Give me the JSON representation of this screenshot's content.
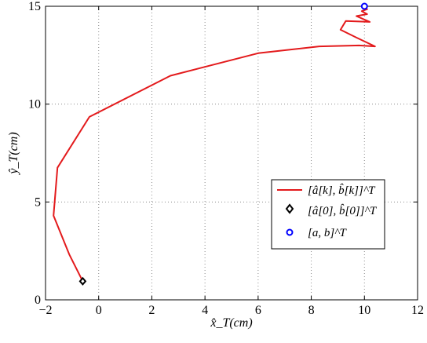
{
  "chart_data": {
    "type": "line",
    "title": "",
    "xlabel": "x̂_T(cm)",
    "ylabel": "ŷ_T(cm)",
    "xlim": [
      -2,
      12
    ],
    "ylim": [
      0,
      15
    ],
    "xticks": [
      -2,
      0,
      2,
      4,
      6,
      8,
      10,
      12
    ],
    "yticks": [
      0,
      5,
      10,
      15
    ],
    "xtick_labels": [
      "−2",
      "0",
      "2",
      "4",
      "6",
      "8",
      "10",
      "12"
    ],
    "ytick_labels": [
      "0",
      "5",
      "10",
      "15"
    ],
    "grid": true,
    "grid_style": "dotted",
    "legend_placement": "right-lower-middle",
    "series": [
      {
        "name": "[â[k], b̂[k]]^T",
        "kind": "line",
        "color": "#e31a1c",
        "x": [
          -0.6,
          -1.1,
          -1.7,
          -1.55,
          -0.35,
          2.7,
          6.0,
          8.3,
          9.8,
          10.4,
          9.7,
          9.1,
          9.3,
          10.2,
          9.7,
          10.1,
          9.9,
          10.1,
          10.0
        ],
        "y": [
          0.95,
          2.3,
          4.3,
          6.75,
          9.35,
          11.45,
          12.6,
          12.95,
          13.0,
          12.95,
          13.4,
          13.8,
          14.25,
          14.2,
          14.5,
          14.6,
          14.75,
          14.85,
          15.0
        ]
      },
      {
        "name": "[â[0], b̂[0]]^T",
        "kind": "marker",
        "marker": "diamond",
        "color": "#000000",
        "x": [
          -0.6
        ],
        "y": [
          0.95
        ]
      },
      {
        "name": "[a, b]^T",
        "kind": "marker",
        "marker": "circle",
        "color": "#0000ff",
        "x": [
          10.0
        ],
        "y": [
          15.0
        ]
      }
    ]
  }
}
